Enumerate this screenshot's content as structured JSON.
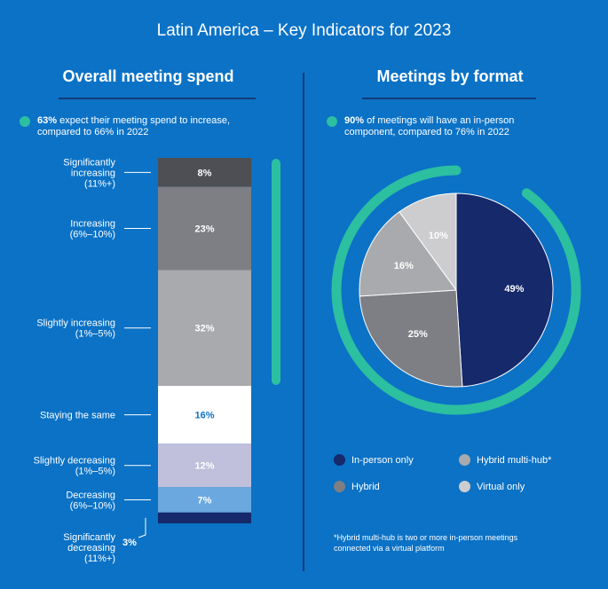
{
  "page": {
    "title": "Latin America – Key Indicators for 2023"
  },
  "left": {
    "title": "Overall meeting spend",
    "note_bold": "63%",
    "note_text": " expect their meeting spend to increase,",
    "note_line2": "compared to 66% in 2022"
  },
  "right": {
    "title": "Meetings by format",
    "note_bold": "90%",
    "note_text": " of meetings will have an in-person",
    "note_line2": "component, compared to 76% in 2022",
    "footnote_line1": "*Hybrid multi-hub is two or more in-person meetings",
    "footnote_line2": "connected via a virtual platform"
  },
  "colors": {
    "background": "#0b72c6",
    "teal": "#2cbfa0",
    "navy": "#163a78"
  },
  "chart_data": [
    {
      "type": "bar",
      "title": "Overall meeting spend",
      "stacked": true,
      "categories": [
        {
          "label": [
            "Significantly",
            "increasing",
            "(11%+)"
          ],
          "value": 8,
          "value_label": "8%",
          "color": "#4d4f54",
          "text_color": "#ffffff"
        },
        {
          "label": [
            "Increasing",
            "(6%–10%)"
          ],
          "value": 23,
          "value_label": "23%",
          "color": "#7d7f84",
          "text_color": "#ffffff"
        },
        {
          "label": [
            "Slightly increasing",
            "(1%–5%)"
          ],
          "value": 32,
          "value_label": "32%",
          "color": "#a9aaad",
          "text_color": "#ffffff"
        },
        {
          "label": [
            "Staying the same"
          ],
          "value": 16,
          "value_label": "16%",
          "color": "#ffffff",
          "text_color": "#0b72c6"
        },
        {
          "label": [
            "Slightly decreasing",
            "(1%–5%)"
          ],
          "value": 12,
          "value_label": "12%",
          "color": "#c1c0dc",
          "text_color": "#ffffff"
        },
        {
          "label": [
            "Decreasing",
            "(6%–10%)"
          ],
          "value": 7,
          "value_label": "7%",
          "color": "#6aa8df",
          "text_color": "#ffffff"
        },
        {
          "label": [
            "Significantly",
            "decreasing",
            "(11%+)"
          ],
          "value": 3,
          "value_label": "3%",
          "color": "#15296b",
          "text_color": "#ffffff"
        }
      ],
      "bracket": "increase"
    },
    {
      "type": "pie",
      "title": "Meetings by format",
      "slices": [
        {
          "name": "In-person only",
          "value": 49,
          "value_label": "49%",
          "color": "#15296b"
        },
        {
          "name": "Hybrid",
          "value": 25,
          "value_label": "25%",
          "color": "#7d7f84"
        },
        {
          "name": "Hybrid multi-hub*",
          "value": 16,
          "value_label": "16%",
          "color": "#a9aaad"
        },
        {
          "name": "Virtual only",
          "value": 10,
          "value_label": "10%",
          "color": "#cdcdcf"
        }
      ],
      "legend": [
        {
          "name": "In-person only",
          "color": "#15296b"
        },
        {
          "name": "Hybrid multi-hub*",
          "color": "#a9aaad"
        },
        {
          "name": "Hybrid",
          "color": "#7d7f84"
        },
        {
          "name": "Virtual only",
          "color": "#cdcdcf"
        }
      ],
      "ring_value": 90
    }
  ]
}
